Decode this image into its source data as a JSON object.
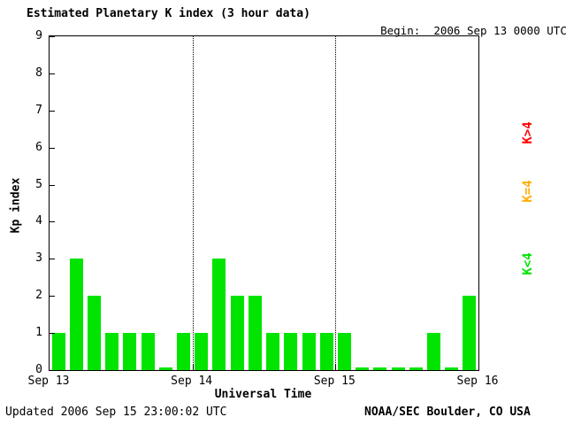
{
  "header": {
    "title": "Estimated Planetary K index (3 hour data)",
    "begin_label": "Begin:",
    "begin_value": "2006 Sep 13 0000 UTC"
  },
  "footer": {
    "updated": "Updated 2006 Sep 15 23:00:02 UTC",
    "source": "NOAA/SEC Boulder, CO USA"
  },
  "legend": [
    {
      "label": "K>4",
      "color": "#ff0000"
    },
    {
      "label": "K=4",
      "color": "#ffae00"
    },
    {
      "label": "K<4",
      "color": "#00e400"
    }
  ],
  "chart_data": {
    "type": "bar",
    "title": "Estimated Planetary K index (3 hour data)",
    "xlabel": "Universal Time",
    "ylabel": "Kp index",
    "ylim": [
      0,
      9
    ],
    "y_ticks": [
      0,
      1,
      2,
      3,
      4,
      5,
      6,
      7,
      8,
      9
    ],
    "x_ticks": [
      "Sep 13",
      "Sep 14",
      "Sep 15",
      "Sep 16"
    ],
    "bar_interval_hours": 3,
    "bars_per_day": 8,
    "values": [
      1,
      3,
      2,
      1,
      1,
      1,
      0,
      1,
      1,
      3,
      2,
      2,
      1,
      1,
      1,
      1,
      1,
      0,
      0,
      0,
      0,
      1,
      0,
      2
    ],
    "color_rule": {
      "below_4": "#00e400",
      "equal_4": "#ffae00",
      "above_4": "#ff0000"
    },
    "grid": "vertical dotted lines at day boundaries",
    "legend_position": "right, rotated"
  }
}
